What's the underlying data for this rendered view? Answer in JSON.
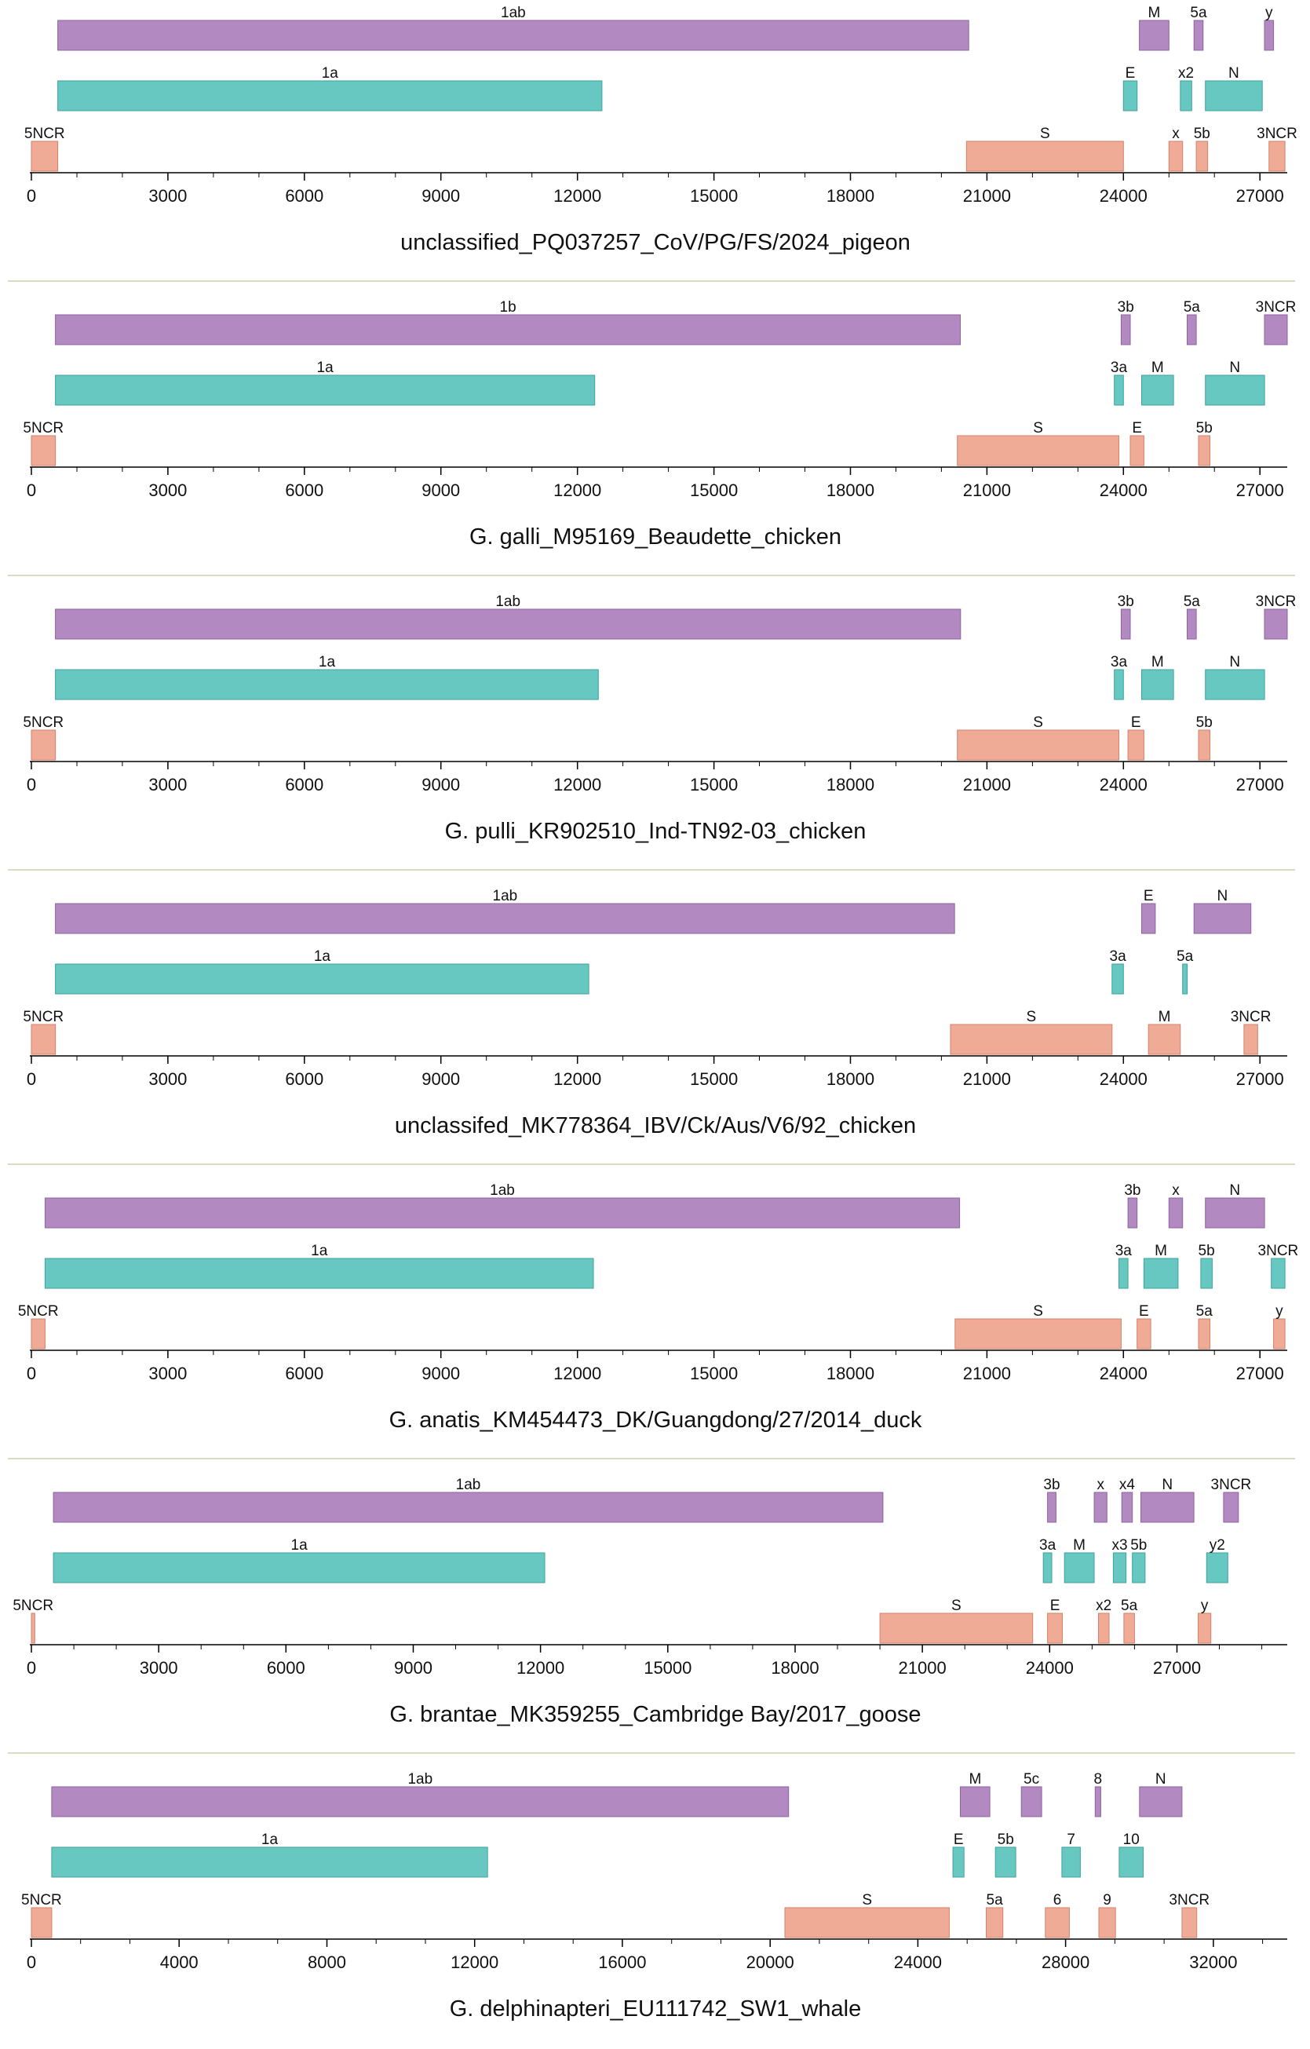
{
  "colors": {
    "row1": "#b389c2",
    "row1_stroke": "#8e63a0",
    "row2": "#66c8c1",
    "row2_stroke": "#3ea39c",
    "row3": "#f0ab96",
    "row3_stroke": "#d4826b",
    "separator": "#d8dcc4",
    "axis": "#000000"
  },
  "chart_data": [
    {
      "type": "genome-map",
      "title": "unclassified_PQ037257_CoV/PG/FS/2024_pigeon",
      "xmax": 27600,
      "ticks": [
        0,
        3000,
        6000,
        9000,
        12000,
        15000,
        18000,
        21000,
        24000,
        27000
      ],
      "tick_labels": [
        "0",
        "3000",
        "6000",
        "9000",
        "12000",
        "15000",
        "18000",
        "21000",
        "24000",
        "27000"
      ],
      "genes": [
        {
          "label": "1ab",
          "row": 1,
          "start": 580,
          "end": 20600
        },
        {
          "label": "M",
          "row": 1,
          "start": 24350,
          "end": 25000
        },
        {
          "label": "5a",
          "row": 1,
          "start": 25550,
          "end": 25750
        },
        {
          "label": "y",
          "row": 1,
          "start": 27100,
          "end": 27300
        },
        {
          "label": "1a",
          "row": 2,
          "start": 580,
          "end": 12540
        },
        {
          "label": "E",
          "row": 2,
          "start": 24000,
          "end": 24300
        },
        {
          "label": "x2",
          "row": 2,
          "start": 25250,
          "end": 25500
        },
        {
          "label": "N",
          "row": 2,
          "start": 25800,
          "end": 27050
        },
        {
          "label": "5NCR",
          "row": 3,
          "start": 0,
          "end": 580
        },
        {
          "label": "S",
          "row": 3,
          "start": 20550,
          "end": 24000
        },
        {
          "label": "x",
          "row": 3,
          "start": 25000,
          "end": 25300
        },
        {
          "label": "5b",
          "row": 3,
          "start": 25600,
          "end": 25850
        },
        {
          "label": "3NCR",
          "row": 3,
          "start": 27200,
          "end": 27550
        }
      ]
    },
    {
      "type": "genome-map",
      "title": "G. galli_M95169_Beaudette_chicken",
      "xmax": 27600,
      "ticks": [
        0,
        3000,
        6000,
        9000,
        12000,
        15000,
        18000,
        21000,
        24000,
        27000
      ],
      "tick_labels": [
        "0",
        "3000",
        "6000",
        "9000",
        "12000",
        "15000",
        "18000",
        "21000",
        "24000",
        "27000"
      ],
      "genes": [
        {
          "label": "1b",
          "row": 1,
          "start": 528,
          "end": 20416
        },
        {
          "label": "3b",
          "row": 1,
          "start": 23950,
          "end": 24150
        },
        {
          "label": "5a",
          "row": 1,
          "start": 25400,
          "end": 25600
        },
        {
          "label": "3NCR",
          "row": 1,
          "start": 27100,
          "end": 27600
        },
        {
          "label": "1a",
          "row": 2,
          "start": 528,
          "end": 12380
        },
        {
          "label": "3a",
          "row": 2,
          "start": 23800,
          "end": 24000
        },
        {
          "label": "M",
          "row": 2,
          "start": 24400,
          "end": 25100
        },
        {
          "label": "N",
          "row": 2,
          "start": 25800,
          "end": 27100
        },
        {
          "label": "5NCR",
          "row": 3,
          "start": 0,
          "end": 528
        },
        {
          "label": "S",
          "row": 3,
          "start": 20350,
          "end": 23900
        },
        {
          "label": "E",
          "row": 3,
          "start": 24150,
          "end": 24450
        },
        {
          "label": "5b",
          "row": 3,
          "start": 25650,
          "end": 25900
        }
      ]
    },
    {
      "type": "genome-map",
      "title": "G. pulli_KR902510_Ind-TN92-03_chicken",
      "xmax": 27600,
      "ticks": [
        0,
        3000,
        6000,
        9000,
        12000,
        15000,
        18000,
        21000,
        24000,
        27000
      ],
      "tick_labels": [
        "0",
        "3000",
        "6000",
        "9000",
        "12000",
        "15000",
        "18000",
        "21000",
        "24000",
        "27000"
      ],
      "genes": [
        {
          "label": "1ab",
          "row": 1,
          "start": 528,
          "end": 20420
        },
        {
          "label": "3b",
          "row": 1,
          "start": 23950,
          "end": 24150
        },
        {
          "label": "5a",
          "row": 1,
          "start": 25400,
          "end": 25600
        },
        {
          "label": "3NCR",
          "row": 1,
          "start": 27100,
          "end": 27600
        },
        {
          "label": "1a",
          "row": 2,
          "start": 528,
          "end": 12460
        },
        {
          "label": "3a",
          "row": 2,
          "start": 23800,
          "end": 24000
        },
        {
          "label": "M",
          "row": 2,
          "start": 24400,
          "end": 25100
        },
        {
          "label": "N",
          "row": 2,
          "start": 25800,
          "end": 27100
        },
        {
          "label": "5NCR",
          "row": 3,
          "start": 0,
          "end": 528
        },
        {
          "label": "S",
          "row": 3,
          "start": 20350,
          "end": 23900
        },
        {
          "label": "E",
          "row": 3,
          "start": 24100,
          "end": 24450
        },
        {
          "label": "5b",
          "row": 3,
          "start": 25650,
          "end": 25900
        }
      ]
    },
    {
      "type": "genome-map",
      "title": "unclassifed_MK778364_IBV/Ck/Aus/V6/92_chicken",
      "xmax": 27600,
      "ticks": [
        0,
        3000,
        6000,
        9000,
        12000,
        15000,
        18000,
        21000,
        24000,
        27000
      ],
      "tick_labels": [
        "0",
        "3000",
        "6000",
        "9000",
        "12000",
        "15000",
        "18000",
        "21000",
        "24000",
        "27000"
      ],
      "genes": [
        {
          "label": "1ab",
          "row": 1,
          "start": 528,
          "end": 20290
        },
        {
          "label": "E",
          "row": 1,
          "start": 24400,
          "end": 24700
        },
        {
          "label": "N",
          "row": 1,
          "start": 25550,
          "end": 26800
        },
        {
          "label": "1a",
          "row": 2,
          "start": 528,
          "end": 12250
        },
        {
          "label": "3a",
          "row": 2,
          "start": 23750,
          "end": 24000
        },
        {
          "label": "5a",
          "row": 2,
          "start": 25300,
          "end": 25400
        },
        {
          "label": "5NCR",
          "row": 3,
          "start": 0,
          "end": 528
        },
        {
          "label": "S",
          "row": 3,
          "start": 20200,
          "end": 23750
        },
        {
          "label": "M",
          "row": 3,
          "start": 24550,
          "end": 25250
        },
        {
          "label": "3NCR",
          "row": 3,
          "start": 26650,
          "end": 26950
        }
      ]
    },
    {
      "type": "genome-map",
      "title": "G. anatis_KM454473_DK/Guangdong/27/2014_duck",
      "xmax": 27600,
      "ticks": [
        0,
        3000,
        6000,
        9000,
        12000,
        15000,
        18000,
        21000,
        24000,
        27000
      ],
      "tick_labels": [
        "0",
        "3000",
        "6000",
        "9000",
        "12000",
        "15000",
        "18000",
        "21000",
        "24000",
        "27000"
      ],
      "genes": [
        {
          "label": "1ab",
          "row": 1,
          "start": 300,
          "end": 20400
        },
        {
          "label": "3b",
          "row": 1,
          "start": 24100,
          "end": 24300
        },
        {
          "label": "x",
          "row": 1,
          "start": 25000,
          "end": 25300
        },
        {
          "label": "N",
          "row": 1,
          "start": 25800,
          "end": 27100
        },
        {
          "label": "1a",
          "row": 2,
          "start": 300,
          "end": 12350
        },
        {
          "label": "3a",
          "row": 2,
          "start": 23900,
          "end": 24100
        },
        {
          "label": "M",
          "row": 2,
          "start": 24450,
          "end": 25200
        },
        {
          "label": "5b",
          "row": 2,
          "start": 25700,
          "end": 25950
        },
        {
          "label": "3NCR",
          "row": 2,
          "start": 27250,
          "end": 27550
        },
        {
          "label": "5NCR",
          "row": 3,
          "start": 0,
          "end": 300
        },
        {
          "label": "S",
          "row": 3,
          "start": 20300,
          "end": 23950
        },
        {
          "label": "E",
          "row": 3,
          "start": 24300,
          "end": 24600
        },
        {
          "label": "5a",
          "row": 3,
          "start": 25650,
          "end": 25900
        },
        {
          "label": "y",
          "row": 3,
          "start": 27300,
          "end": 27550
        }
      ]
    },
    {
      "type": "genome-map",
      "title": "G. brantae_MK359255_Cambridge Bay/2017_goose",
      "xmax": 29600,
      "ticks": [
        0,
        3000,
        6000,
        9000,
        12000,
        15000,
        18000,
        21000,
        24000,
        27000
      ],
      "tick_labels": [
        "0",
        "3000",
        "6000",
        "9000",
        "12000",
        "15000",
        "18000",
        "21000",
        "24000",
        "27000"
      ],
      "genes": [
        {
          "label": "1ab",
          "row": 1,
          "start": 520,
          "end": 20070
        },
        {
          "label": "3b",
          "row": 1,
          "start": 23950,
          "end": 24150
        },
        {
          "label": "x",
          "row": 1,
          "start": 25050,
          "end": 25350
        },
        {
          "label": "x4",
          "row": 1,
          "start": 25700,
          "end": 25950
        },
        {
          "label": "N",
          "row": 1,
          "start": 26150,
          "end": 27400
        },
        {
          "label": "3NCR",
          "row": 1,
          "start": 28100,
          "end": 28450
        },
        {
          "label": "1a",
          "row": 2,
          "start": 520,
          "end": 12100
        },
        {
          "label": "3a",
          "row": 2,
          "start": 23850,
          "end": 24050
        },
        {
          "label": "M",
          "row": 2,
          "start": 24350,
          "end": 25050
        },
        {
          "label": "x3",
          "row": 2,
          "start": 25500,
          "end": 25800
        },
        {
          "label": "5b",
          "row": 2,
          "start": 25950,
          "end": 26250
        },
        {
          "label": "y2",
          "row": 2,
          "start": 27700,
          "end": 28200
        },
        {
          "label": "5NCR",
          "row": 3,
          "start": 0,
          "end": 80
        },
        {
          "label": "S",
          "row": 3,
          "start": 20000,
          "end": 23600
        },
        {
          "label": "E",
          "row": 3,
          "start": 23950,
          "end": 24300
        },
        {
          "label": "x2",
          "row": 3,
          "start": 25150,
          "end": 25400
        },
        {
          "label": "5a",
          "row": 3,
          "start": 25750,
          "end": 26000
        },
        {
          "label": "y",
          "row": 3,
          "start": 27500,
          "end": 27800
        }
      ]
    },
    {
      "type": "genome-map",
      "title": "G. delphinapteri_EU111742_SW1_whale",
      "xmax": 34000,
      "ticks": [
        0,
        4000,
        8000,
        12000,
        16000,
        20000,
        24000,
        28000,
        32000
      ],
      "tick_labels": [
        "0",
        "4000",
        "8000",
        "12000",
        "16000",
        "20000",
        "24000",
        "28000",
        "32000"
      ],
      "genes": [
        {
          "label": "1ab",
          "row": 1,
          "start": 550,
          "end": 20500
        },
        {
          "label": "M",
          "row": 1,
          "start": 25150,
          "end": 25950
        },
        {
          "label": "5c",
          "row": 1,
          "start": 26800,
          "end": 27350
        },
        {
          "label": "8",
          "row": 1,
          "start": 28800,
          "end": 28950
        },
        {
          "label": "N",
          "row": 1,
          "start": 30000,
          "end": 31150
        },
        {
          "label": "1a",
          "row": 2,
          "start": 550,
          "end": 12350
        },
        {
          "label": "E",
          "row": 2,
          "start": 24950,
          "end": 25250
        },
        {
          "label": "5b",
          "row": 2,
          "start": 26100,
          "end": 26650
        },
        {
          "label": "7",
          "row": 2,
          "start": 27900,
          "end": 28400
        },
        {
          "label": "10",
          "row": 2,
          "start": 29450,
          "end": 30100
        },
        {
          "label": "5NCR",
          "row": 3,
          "start": 0,
          "end": 550
        },
        {
          "label": "S",
          "row": 3,
          "start": 20400,
          "end": 24850
        },
        {
          "label": "5a",
          "row": 3,
          "start": 25850,
          "end": 26300
        },
        {
          "label": "6",
          "row": 3,
          "start": 27450,
          "end": 28100
        },
        {
          "label": "9",
          "row": 3,
          "start": 28900,
          "end": 29350
        },
        {
          "label": "3NCR",
          "row": 3,
          "start": 31150,
          "end": 31550
        }
      ]
    }
  ]
}
